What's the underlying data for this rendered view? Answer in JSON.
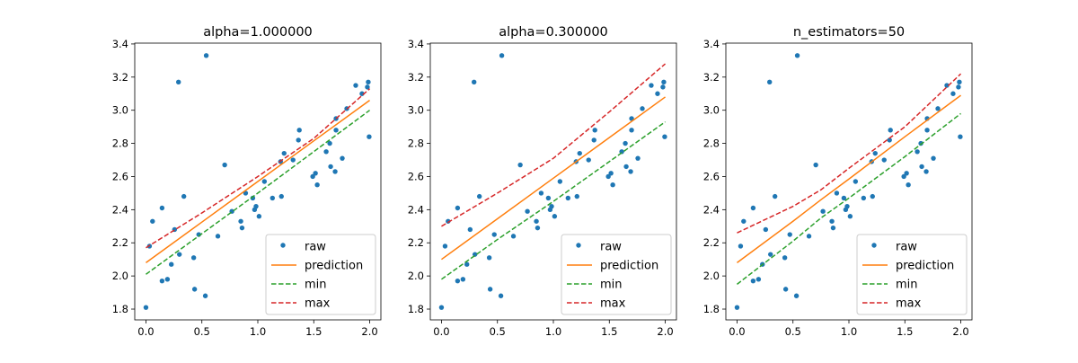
{
  "chart_data": [
    {
      "type": "scatter",
      "title": "alpha=1.000000",
      "xlim": [
        -0.1,
        2.1
      ],
      "ylim": [
        1.735,
        3.405
      ],
      "xticks": [
        "0.0",
        "0.5",
        "1.0",
        "1.5",
        "2.0"
      ],
      "yticks": [
        "1.8",
        "2.0",
        "2.2",
        "2.4",
        "2.6",
        "2.8",
        "3.0",
        "3.2",
        "3.4"
      ],
      "legend_placement": "lower-right",
      "legend": [
        "raw",
        "prediction",
        "min",
        "max"
      ],
      "lines": {
        "x": [
          0.0,
          0.5,
          1.0,
          1.5,
          2.0
        ],
        "prediction": [
          2.08,
          2.325,
          2.57,
          2.815,
          3.06
        ],
        "min": [
          2.01,
          2.255,
          2.5,
          2.75,
          3.0
        ],
        "max": [
          2.17,
          2.38,
          2.6,
          2.83,
          3.13
        ]
      }
    },
    {
      "type": "scatter",
      "title": "alpha=0.300000",
      "xlim": [
        -0.1,
        2.1
      ],
      "ylim": [
        1.735,
        3.405
      ],
      "xticks": [
        "0.0",
        "0.5",
        "1.0",
        "1.5",
        "2.0"
      ],
      "yticks": [
        "1.8",
        "2.0",
        "2.2",
        "2.4",
        "2.6",
        "2.8",
        "3.0",
        "3.2",
        "3.4"
      ],
      "legend_placement": "lower-right",
      "legend": [
        "raw",
        "prediction",
        "min",
        "max"
      ],
      "lines": {
        "x": [
          0.0,
          0.5,
          1.0,
          1.5,
          2.0
        ],
        "prediction": [
          2.1,
          2.345,
          2.59,
          2.835,
          3.08
        ],
        "min": [
          1.98,
          2.22,
          2.45,
          2.69,
          2.93
        ],
        "max": [
          2.3,
          2.5,
          2.71,
          2.99,
          3.28
        ]
      }
    },
    {
      "type": "scatter",
      "title": "n_estimators=50",
      "xlim": [
        -0.1,
        2.1
      ],
      "ylim": [
        1.735,
        3.405
      ],
      "xticks": [
        "0.0",
        "0.5",
        "1.0",
        "1.5",
        "2.0"
      ],
      "yticks": [
        "1.8",
        "2.0",
        "2.2",
        "2.4",
        "2.6",
        "2.8",
        "3.0",
        "3.2",
        "3.4"
      ],
      "legend_placement": "lower-right",
      "legend": [
        "raw",
        "prediction",
        "min",
        "max"
      ],
      "lines": {
        "x": [
          0.0,
          0.5,
          0.75,
          1.0,
          1.5,
          2.0
        ],
        "prediction": [
          2.08,
          2.33,
          2.46,
          2.585,
          2.84,
          3.09
        ],
        "min": [
          1.95,
          2.21,
          2.35,
          2.47,
          2.72,
          2.98
        ],
        "max": [
          2.26,
          2.42,
          2.52,
          2.65,
          2.9,
          3.22
        ]
      }
    }
  ],
  "raw": {
    "x": [
      0.0,
      0.032,
      0.059,
      0.144,
      0.144,
      0.192,
      0.227,
      0.256,
      0.291,
      0.299,
      0.339,
      0.427,
      0.435,
      0.472,
      0.531,
      0.539,
      0.643,
      0.704,
      0.768,
      0.848,
      0.859,
      0.891,
      0.955,
      0.971,
      0.984,
      1.011,
      1.059,
      1.131,
      1.211,
      1.203,
      1.235,
      1.315,
      1.363,
      1.371,
      1.491,
      1.515,
      1.531,
      1.611,
      1.643,
      1.651,
      1.691,
      1.699,
      1.699,
      1.755,
      1.795,
      1.875,
      1.931,
      1.979,
      1.987,
      1.995
    ],
    "y": [
      1.81,
      2.18,
      2.33,
      2.41,
      1.97,
      1.98,
      2.07,
      2.28,
      3.17,
      2.13,
      2.48,
      2.11,
      1.92,
      2.25,
      1.88,
      3.33,
      2.24,
      2.67,
      2.39,
      2.33,
      2.29,
      2.5,
      2.47,
      2.4,
      2.42,
      2.36,
      2.57,
      2.47,
      2.48,
      2.69,
      2.74,
      2.7,
      2.82,
      2.88,
      2.6,
      2.62,
      2.55,
      2.75,
      2.8,
      2.66,
      2.63,
      2.95,
      2.88,
      2.71,
      3.01,
      3.15,
      3.1,
      3.14,
      3.17,
      2.84
    ]
  },
  "colors": {
    "raw": "#1f77b4",
    "prediction": "#ff7f0e",
    "min": "#2ca02c",
    "max": "#d62728"
  }
}
